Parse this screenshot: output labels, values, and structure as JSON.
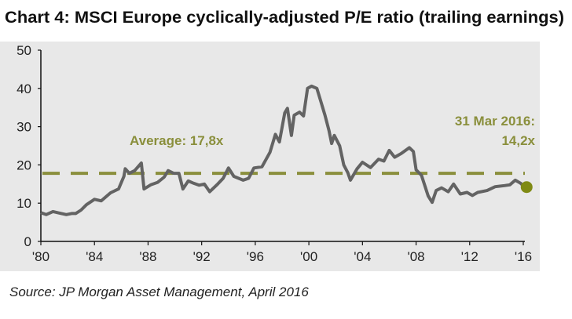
{
  "chart_data": {
    "type": "line",
    "title": "Chart 4:  MSCI Europe cyclically-adjusted P/E ratio (trailing earnings)",
    "source": "Source:  JP Morgan Asset Management, April 2016",
    "xlabel": "",
    "ylabel": "",
    "xlim": [
      1980,
      2016.3
    ],
    "ylim": [
      0,
      50
    ],
    "y_ticks": [
      0,
      10,
      20,
      30,
      40,
      50
    ],
    "x_ticks": [
      {
        "year": 1980,
        "label": "'80"
      },
      {
        "year": 1984,
        "label": "'84"
      },
      {
        "year": 1988,
        "label": "'88"
      },
      {
        "year": 1992,
        "label": "'92"
      },
      {
        "year": 1996,
        "label": "'96"
      },
      {
        "year": 2000,
        "label": "'00"
      },
      {
        "year": 2004,
        "label": "'04"
      },
      {
        "year": 2008,
        "label": "'08"
      },
      {
        "year": 2012,
        "label": "'12"
      },
      {
        "year": 2016,
        "label": "'16"
      }
    ],
    "grid": false,
    "colors": {
      "line": "#636363",
      "average": "#8a8f3c",
      "marker": "#7f8a14",
      "plot_bg": "#e8e8e8"
    },
    "series": [
      {
        "x": [
          1980,
          1980.4,
          1980.9,
          1981.4,
          1981.9,
          1982.3,
          1982.6,
          1983,
          1983.4,
          1984,
          1984.5,
          1985.2,
          1985.8,
          1986.2,
          1986.3,
          1986.6,
          1987,
          1987.5,
          1987.7,
          1988.2,
          1988.7,
          1989.2,
          1989.5,
          1989.9,
          1990.3,
          1990.6,
          1991,
          1991.4,
          1991.8,
          1992.2,
          1992.6,
          1993.2,
          1993.6,
          1994,
          1994.4,
          1995.1,
          1995.5,
          1995.9,
          1996.5,
          1997.1,
          1997.5,
          1997.8,
          1998.2,
          1998.4,
          1998.7,
          1998.9,
          1999.3,
          1999.6,
          1999.9,
          2000.2,
          2000.6,
          2000.9,
          2001.2,
          2001.5,
          2001.7,
          2001.9,
          2002.3,
          2002.6,
          2002.9,
          2003.1,
          2003.6,
          2004,
          2004.6,
          2005.2,
          2005.6,
          2006,
          2006.4,
          2006.9,
          2007.5,
          2007.8,
          2008,
          2008.4,
          2008.9,
          2009.2,
          2009.5,
          2009.9,
          2010.4,
          2010.8,
          2011.3,
          2011.8,
          2012.2,
          2012.6,
          2013.3,
          2013.9,
          2014.6,
          2015,
          2015.4,
          2015.8,
          2016.1
        ],
        "y": [
          7.5,
          7,
          7.8,
          7.4,
          7,
          7.3,
          7.3,
          8.2,
          9.6,
          11,
          10.6,
          12.7,
          13.7,
          17,
          19,
          17.8,
          18.5,
          20.5,
          13.7,
          14.8,
          15.4,
          16.8,
          18.5,
          17.8,
          17.8,
          13.7,
          15.8,
          15.2,
          14.7,
          15,
          13,
          15,
          16.5,
          19.2,
          17,
          16,
          16.5,
          19.2,
          19.5,
          23.3,
          28,
          26,
          33.6,
          34.8,
          27.7,
          33,
          33.8,
          32.8,
          40,
          40.6,
          40,
          36.5,
          33,
          29,
          25.6,
          27.7,
          25,
          20,
          18,
          16,
          19,
          20.7,
          19.3,
          21.5,
          21,
          23.8,
          22,
          23,
          24.5,
          23.5,
          18.7,
          17.3,
          11.9,
          10.2,
          13.3,
          14,
          13,
          15,
          12.4,
          12.8,
          12,
          12.8,
          13.3,
          14.3,
          14.6,
          14.8,
          16,
          15.2,
          14.2
        ]
      }
    ],
    "average": {
      "value": 17.8,
      "label": "Average: 17,8x"
    },
    "last_point": {
      "year": 2016.25,
      "value": 14.2,
      "label_line1": "31 Mar 2016:",
      "label_line2": "14,2x"
    }
  }
}
